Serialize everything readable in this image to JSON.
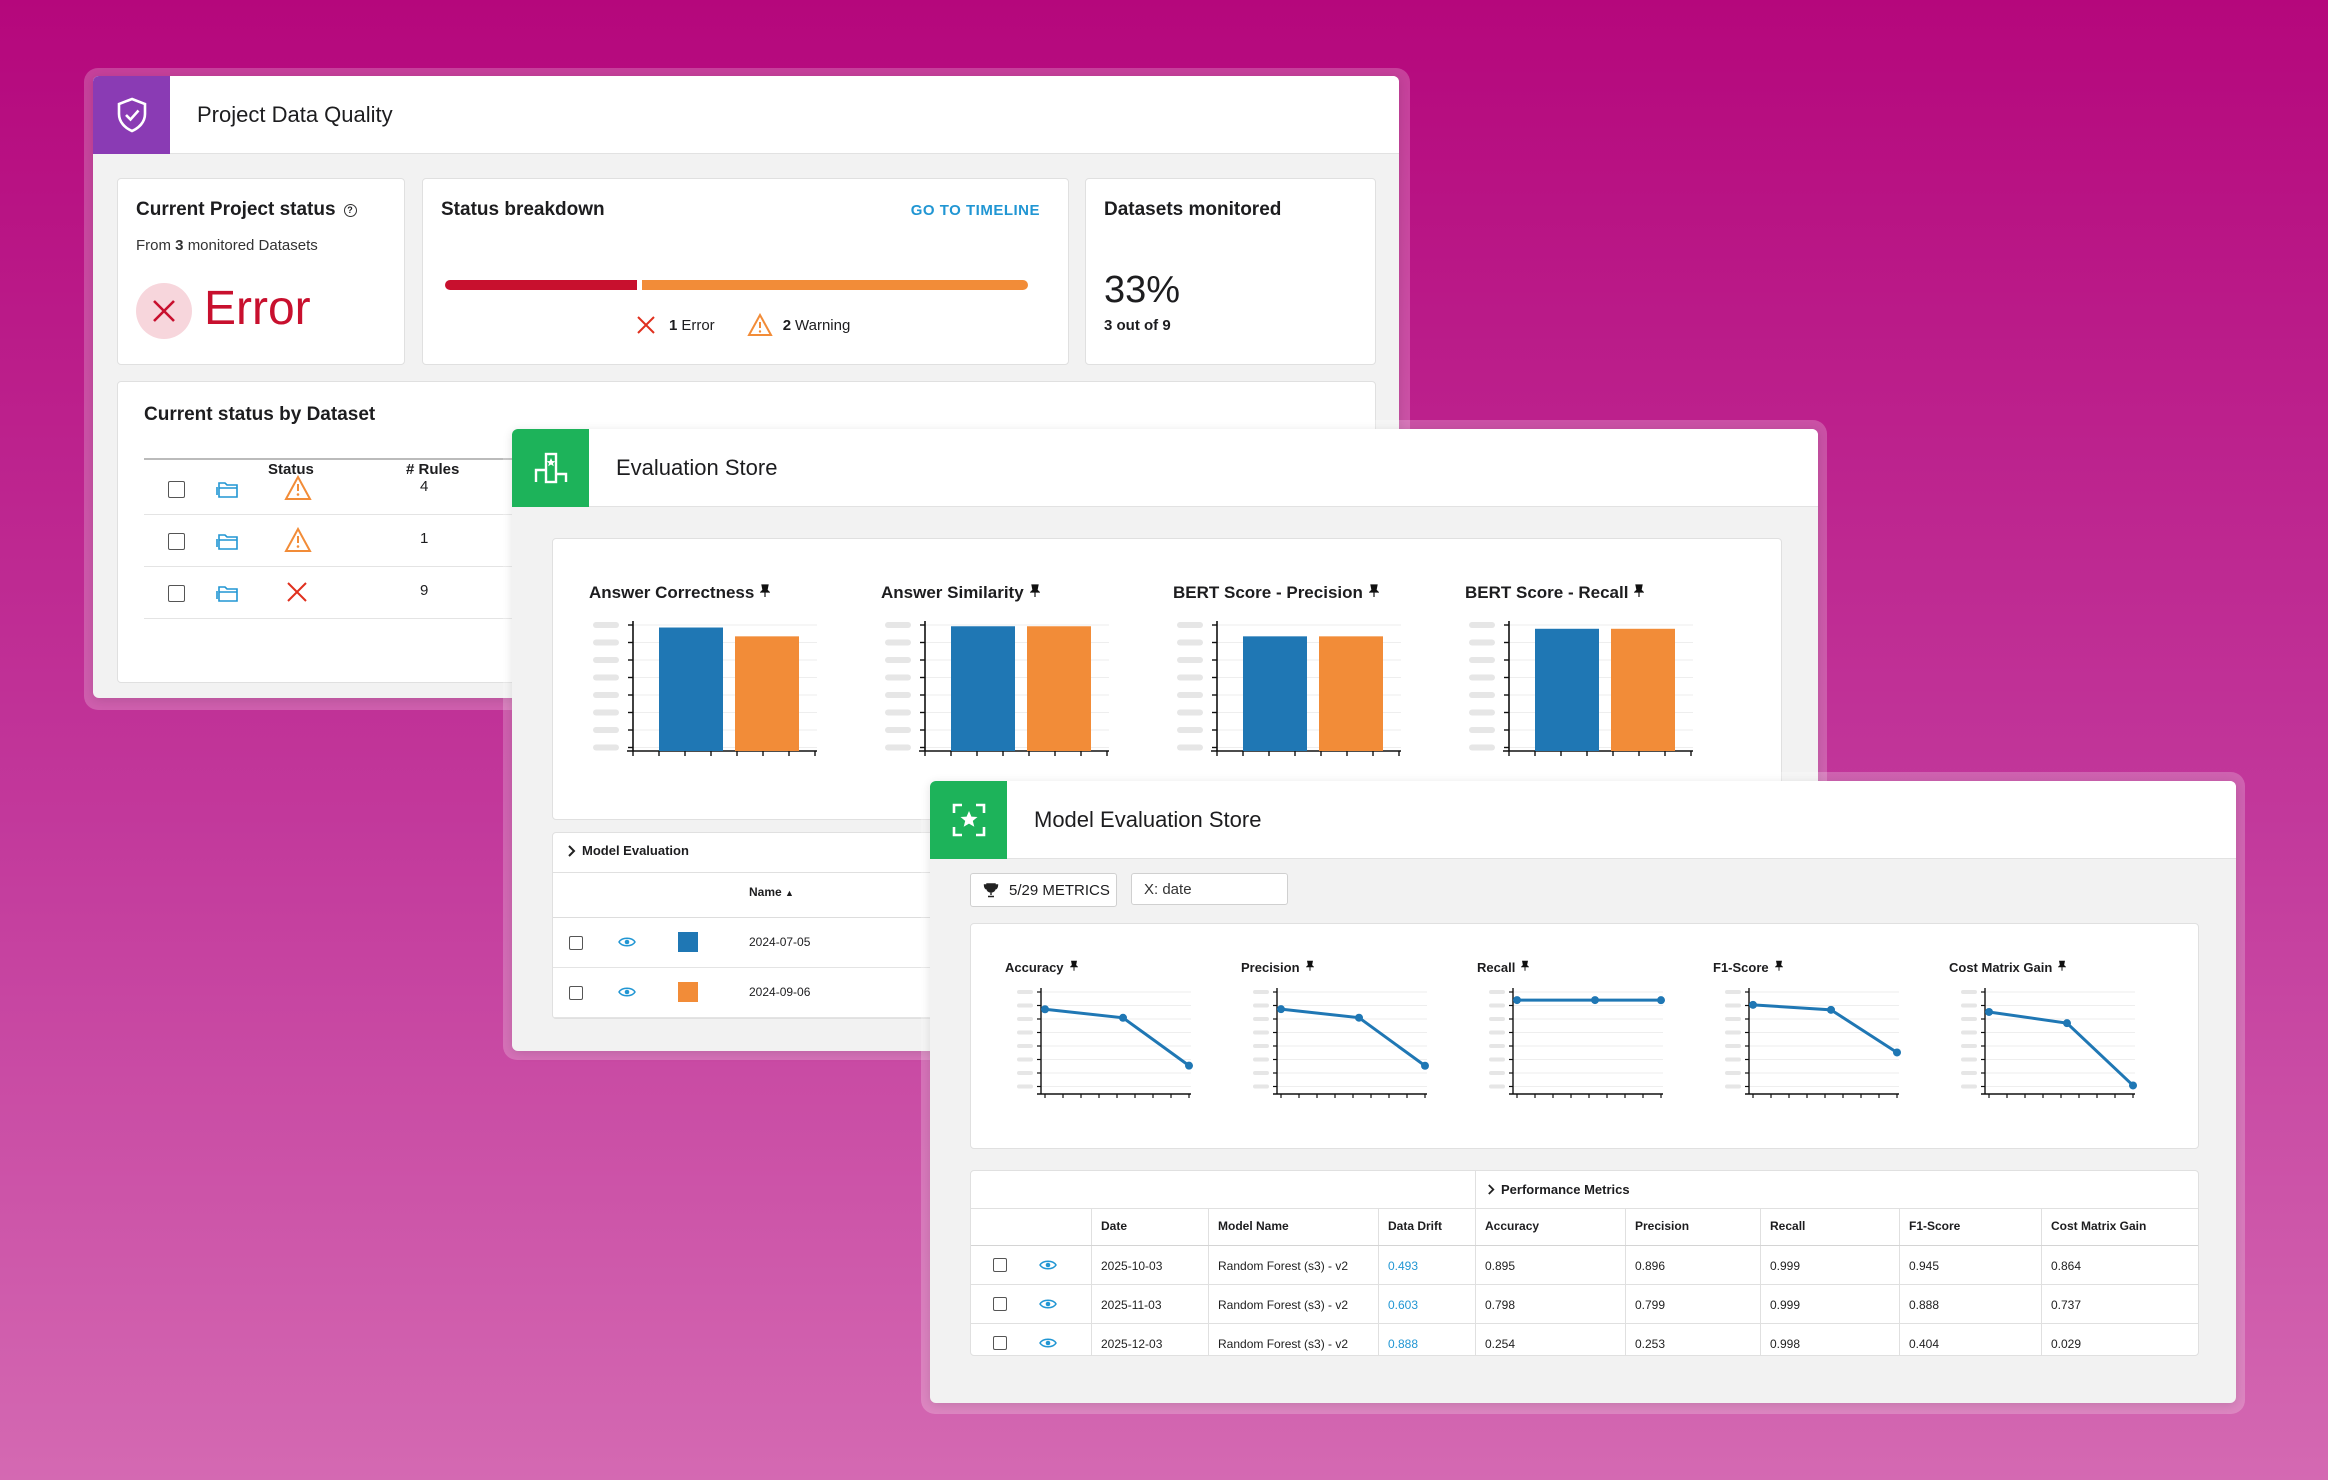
{
  "project_data_quality": {
    "title": "Project Data Quality",
    "current_status": {
      "title": "Current Project status",
      "from_prefix": "From",
      "count": "3",
      "from_suffix": "monitored Datasets",
      "status": "Error",
      "status_color": "#c8102e"
    },
    "breakdown": {
      "title": "Status breakdown",
      "link": "GO TO TIMELINE",
      "error_count": "1",
      "error_label": "Error",
      "warning_count": "2",
      "warning_label": "Warning",
      "error_share": 0.333,
      "warning_share": 0.667,
      "error_color": "#c8102e",
      "warning_color": "#f28c38"
    },
    "datasets_monitored": {
      "title": "Datasets monitored",
      "percent": "33%",
      "detail": "3 out of 9"
    },
    "by_dataset": {
      "title": "Current status by Dataset",
      "columns": [
        "Status",
        "# Rules"
      ],
      "rows": [
        {
          "status": "warning",
          "rules": "4"
        },
        {
          "status": "warning",
          "rules": "1"
        },
        {
          "status": "error",
          "rules": "9"
        }
      ]
    }
  },
  "evaluation_store": {
    "title": "Evaluation Store",
    "metrics": [
      {
        "title": "Answer Correctness",
        "values": [
          0.98,
          0.91
        ]
      },
      {
        "title": "Answer Similarity",
        "values": [
          0.99,
          0.99
        ]
      },
      {
        "title": "BERT Score - Precision",
        "values": [
          0.91,
          0.91
        ]
      },
      {
        "title": "BERT Score - Recall",
        "values": [
          0.97,
          0.97
        ]
      }
    ],
    "series_colors": [
      "#1f77b4",
      "#f28c38"
    ],
    "model_evaluation": {
      "label": "Model Evaluation",
      "name_header": "Name",
      "sort_icon": "▲",
      "rows": [
        {
          "date": "2024-07-05",
          "color": "#1f77b4"
        },
        {
          "date": "2024-09-06",
          "color": "#f28c38"
        }
      ]
    }
  },
  "model_evaluation_store": {
    "title": "Model Evaluation Store",
    "metrics_button": "5/29 METRICS",
    "x_axis_field": "X: date",
    "line_color": "#1f77b4",
    "charts": [
      {
        "title": "Accuracy",
        "values": [
          0.895,
          0.798,
          0.254
        ]
      },
      {
        "title": "Precision",
        "values": [
          0.896,
          0.799,
          0.253
        ]
      },
      {
        "title": "Recall",
        "values": [
          0.999,
          0.999,
          0.998
        ]
      },
      {
        "title": "F1-Score",
        "values": [
          0.945,
          0.888,
          0.404
        ]
      },
      {
        "title": "Cost Matrix Gain",
        "values": [
          0.864,
          0.737,
          0.029
        ]
      }
    ],
    "table": {
      "group_label": "Performance Metrics",
      "columns": [
        "Date",
        "Model Name",
        "Data Drift",
        "Accuracy",
        "Precision",
        "Recall",
        "F1-Score",
        "Cost Matrix Gain"
      ],
      "rows": [
        [
          "2025-10-03",
          "Random Forest (s3) - v2",
          "0.493",
          "0.895",
          "0.896",
          "0.999",
          "0.945",
          "0.864"
        ],
        [
          "2025-11-03",
          "Random Forest (s3) - v2",
          "0.603",
          "0.798",
          "0.799",
          "0.999",
          "0.888",
          "0.737"
        ],
        [
          "2025-12-03",
          "Random Forest (s3) - v2",
          "0.888",
          "0.254",
          "0.253",
          "0.998",
          "0.404",
          "0.029"
        ]
      ]
    }
  },
  "chart_data": [
    {
      "type": "bar",
      "title": "Answer Correctness",
      "series": [
        {
          "values": [
            0.98
          ]
        },
        {
          "values": [
            0.91
          ]
        }
      ]
    },
    {
      "type": "bar",
      "title": "Answer Similarity",
      "series": [
        {
          "values": [
            0.99
          ]
        },
        {
          "values": [
            0.99
          ]
        }
      ]
    },
    {
      "type": "bar",
      "title": "BERT Score - Precision",
      "series": [
        {
          "values": [
            0.91
          ]
        },
        {
          "values": [
            0.91
          ]
        }
      ]
    },
    {
      "type": "bar",
      "title": "BERT Score - Recall",
      "series": [
        {
          "values": [
            0.97
          ]
        },
        {
          "values": [
            0.97
          ]
        }
      ]
    },
    {
      "type": "line",
      "title": "Accuracy",
      "x": [
        "2025-10-03",
        "2025-11-03",
        "2025-12-03"
      ],
      "values": [
        0.895,
        0.798,
        0.254
      ]
    },
    {
      "type": "line",
      "title": "Precision",
      "x": [
        "2025-10-03",
        "2025-11-03",
        "2025-12-03"
      ],
      "values": [
        0.896,
        0.799,
        0.253
      ]
    },
    {
      "type": "line",
      "title": "Recall",
      "x": [
        "2025-10-03",
        "2025-11-03",
        "2025-12-03"
      ],
      "values": [
        0.999,
        0.999,
        0.998
      ]
    },
    {
      "type": "line",
      "title": "F1-Score",
      "x": [
        "2025-10-03",
        "2025-11-03",
        "2025-12-03"
      ],
      "values": [
        0.945,
        0.888,
        0.404
      ]
    },
    {
      "type": "line",
      "title": "Cost Matrix Gain",
      "x": [
        "2025-10-03",
        "2025-11-03",
        "2025-12-03"
      ],
      "values": [
        0.864,
        0.737,
        0.029
      ]
    }
  ]
}
